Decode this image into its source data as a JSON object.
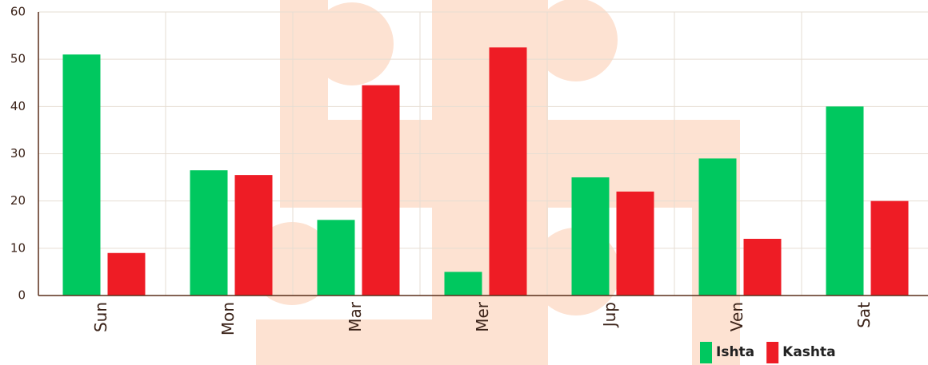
{
  "chart_data": {
    "type": "bar",
    "categories": [
      "Sun",
      "Mon",
      "Mar",
      "Mer",
      "Jup",
      "Ven",
      "Sat"
    ],
    "series": [
      {
        "name": "Ishta",
        "color": "#00c85f",
        "values": [
          51,
          26.5,
          16,
          5,
          25,
          29,
          40
        ]
      },
      {
        "name": "Kashta",
        "color": "#ee1c25",
        "values": [
          9,
          25.5,
          44.5,
          52.5,
          22,
          12,
          20
        ]
      }
    ],
    "ylim": [
      0,
      60
    ],
    "yticks": [
      0,
      10,
      20,
      30,
      40,
      50,
      60
    ],
    "grid": true,
    "legend": "bottom-right"
  }
}
